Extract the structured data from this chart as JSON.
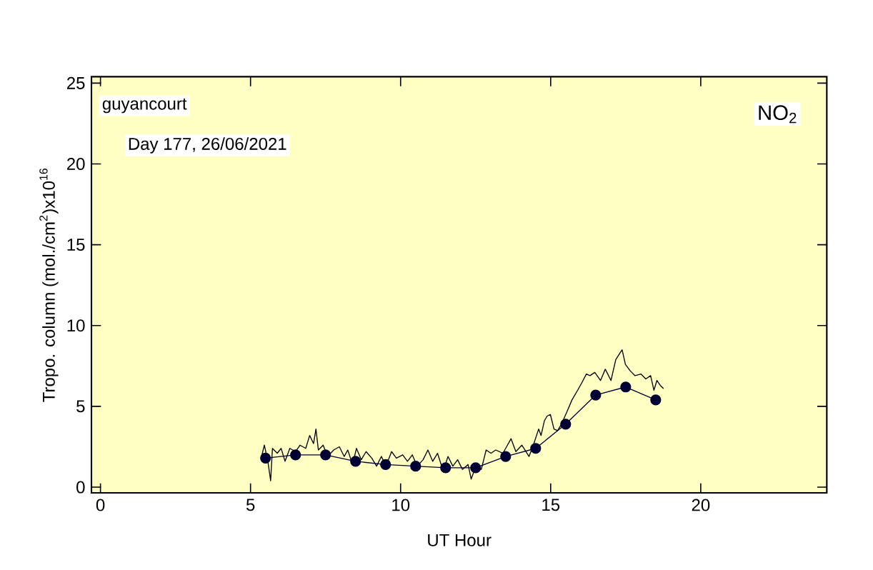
{
  "chart_data": {
    "type": "line",
    "xlabel": "UT Hour",
    "ylabel": "Tropo. column (mol./cm$^{2}$)x10$^{16}$",
    "annotations": [
      "guyancourt",
      "Day 177, 26/06/2021",
      "NO$_{2}$"
    ],
    "xlim": [
      -0.3,
      24.2
    ],
    "ylim": [
      -0.35,
      25.4
    ],
    "xticks": [
      0,
      5,
      10,
      15,
      20
    ],
    "yticks": [
      0,
      5,
      10,
      15,
      20,
      25
    ],
    "series": [
      {
        "color": "#000000",
        "line_style": "solid",
        "marker": "none",
        "x": [
          5.38,
          5.46,
          5.57,
          5.67,
          5.73,
          5.89,
          6.02,
          6.15,
          6.31,
          6.5,
          6.65,
          6.84,
          6.97,
          7.1,
          7.18,
          7.26,
          7.42,
          7.57,
          7.77,
          7.96,
          8.12,
          8.24,
          8.4,
          8.53,
          8.69,
          8.85,
          9.04,
          9.2,
          9.36,
          9.51,
          9.7,
          9.86,
          10.07,
          10.23,
          10.39,
          10.55,
          10.75,
          10.91,
          11.07,
          11.23,
          11.42,
          11.58,
          11.74,
          11.9,
          12.06,
          12.25,
          12.35,
          12.51,
          12.69,
          12.85,
          13.01,
          13.17,
          13.41,
          13.56,
          13.68,
          13.84,
          14.04,
          14.28,
          14.44,
          14.6,
          14.68,
          14.79,
          14.88,
          14.99,
          15.11,
          15.23,
          15.36,
          15.55,
          15.71,
          15.9,
          16.02,
          16.19,
          16.31,
          16.47,
          16.66,
          16.82,
          17.01,
          17.17,
          17.38,
          17.49,
          17.65,
          17.81,
          18.01,
          18.17,
          18.33,
          18.44,
          18.54,
          18.65,
          18.76
        ],
        "values": [
          2.0,
          2.6,
          1.7,
          0.4,
          2.4,
          2.1,
          2.4,
          1.6,
          2.4,
          2.2,
          2.6,
          2.4,
          3.2,
          2.7,
          3.6,
          2.3,
          2.6,
          1.9,
          2.3,
          2.5,
          1.9,
          2.3,
          1.4,
          2.4,
          1.7,
          2.2,
          1.8,
          1.3,
          1.9,
          1.3,
          2.2,
          1.8,
          2.0,
          1.6,
          2.0,
          1.3,
          1.7,
          2.3,
          1.6,
          2.1,
          1.0,
          1.9,
          1.3,
          1.7,
          1.1,
          1.4,
          0.5,
          1.3,
          1.1,
          2.3,
          2.1,
          2.3,
          2.1,
          2.6,
          3.0,
          2.2,
          2.6,
          1.9,
          2.7,
          3.6,
          3.2,
          4.1,
          4.4,
          4.5,
          3.6,
          3.5,
          3.9,
          4.7,
          5.4,
          6.0,
          6.4,
          7.0,
          6.9,
          7.1,
          6.6,
          7.3,
          6.6,
          7.9,
          8.5,
          7.6,
          7.2,
          6.9,
          7.0,
          6.7,
          6.9,
          6.0,
          6.6,
          6.3,
          6.1
        ]
      },
      {
        "color": "#000033",
        "line_style": "solid",
        "marker": "circle",
        "x": [
          5.5,
          6.5,
          7.5,
          8.5,
          9.5,
          10.5,
          11.5,
          12.5,
          13.5,
          14.5,
          15.5,
          16.5,
          17.5,
          18.5
        ],
        "values": [
          1.8,
          2.0,
          2.0,
          1.6,
          1.4,
          1.3,
          1.2,
          1.2,
          1.9,
          2.4,
          3.9,
          5.7,
          6.2,
          5.4
        ]
      }
    ]
  }
}
